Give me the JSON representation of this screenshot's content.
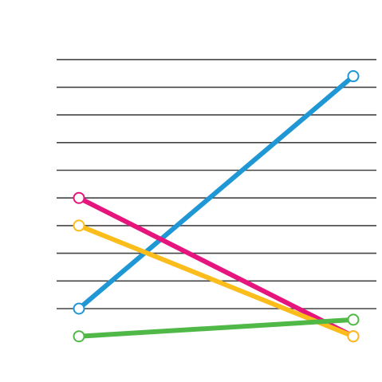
{
  "chart_data": {
    "type": "line",
    "title": "",
    "xlabel": "",
    "ylabel": "",
    "x": [
      0,
      1
    ],
    "ylim": [
      -1,
      10
    ],
    "grid": true,
    "gridlines_y": [
      0,
      1,
      2,
      3,
      4,
      5,
      6,
      7,
      8,
      9
    ],
    "series": [
      {
        "color": "#1f97d4",
        "values": [
          0,
          8.4
        ]
      },
      {
        "color": "#e6157e",
        "values": [
          4,
          -1
        ]
      },
      {
        "color": "#fbbd1b",
        "values": [
          3,
          -1
        ]
      },
      {
        "color": "#4fb847",
        "values": [
          -1,
          -0.4
        ]
      }
    ]
  }
}
